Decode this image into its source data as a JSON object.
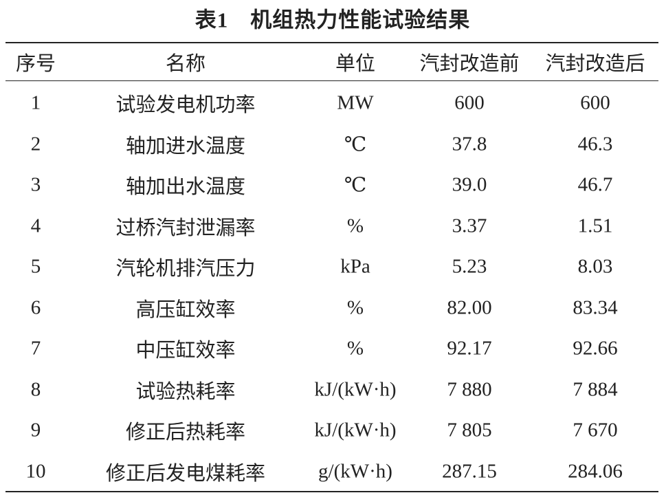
{
  "title": "表1　机组热力性能试验结果",
  "table": {
    "header": [
      "序号",
      "名称",
      "单位",
      "汽封改造前",
      "汽封改造后"
    ],
    "rows": [
      [
        "1",
        "试验发电机功率",
        "MW",
        "600",
        "600"
      ],
      [
        "2",
        "轴加进水温度",
        "℃",
        "37.8",
        "46.3"
      ],
      [
        "3",
        "轴加出水温度",
        "℃",
        "39.0",
        "46.7"
      ],
      [
        "4",
        "过桥汽封泄漏率",
        "%",
        "3.37",
        "1.51"
      ],
      [
        "5",
        "汽轮机排汽压力",
        "kPa",
        "5.23",
        "8.03"
      ],
      [
        "6",
        "高压缸效率",
        "%",
        "82.00",
        "83.34"
      ],
      [
        "7",
        "中压缸效率",
        "%",
        "92.17",
        "92.66"
      ],
      [
        "8",
        "试验热耗率",
        "kJ/(kW·h)",
        "7 880",
        "7 884"
      ],
      [
        "9",
        "修正后热耗率",
        "kJ/(kW·h)",
        "7 805",
        "7 670"
      ],
      [
        "10",
        "修正后发电煤耗率",
        "g/(kW·h)",
        "287.15",
        "284.06"
      ]
    ]
  }
}
